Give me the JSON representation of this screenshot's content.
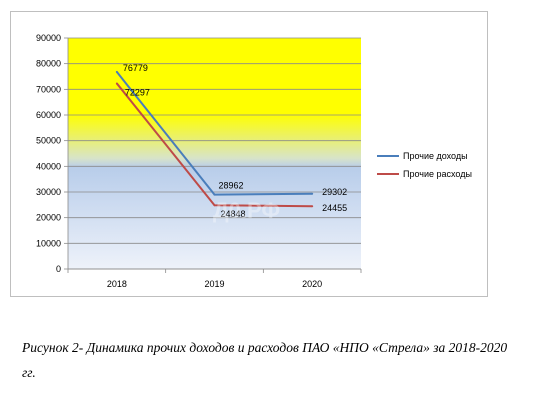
{
  "chart_data": {
    "type": "line",
    "categories": [
      "2018",
      "2019",
      "2020"
    ],
    "series": [
      {
        "name": "Прочие доходы",
        "values": [
          76779,
          28962,
          29302
        ],
        "color": "#4a7ebb",
        "labels": [
          "76779",
          "28962",
          "29302"
        ]
      },
      {
        "name": "Прочие расходы",
        "values": [
          72297,
          24848,
          24455
        ],
        "color": "#be4b48",
        "labels": [
          "72297",
          "24848",
          "24455"
        ]
      }
    ],
    "ylim": [
      0,
      90000
    ],
    "yticks": [
      "0",
      "10000",
      "20000",
      "30000",
      "40000",
      "50000",
      "60000",
      "70000",
      "80000",
      "90000"
    ],
    "grid": true,
    "legend": "right",
    "plot_background": {
      "top": "#ffff00",
      "middle": "#c8d8f0",
      "bottom": "#e8eef8"
    }
  },
  "caption": "Рисунок 2- Динамика прочих доходов и расходов ПАО «НПО «Стрела» за 2018-2020 гг."
}
